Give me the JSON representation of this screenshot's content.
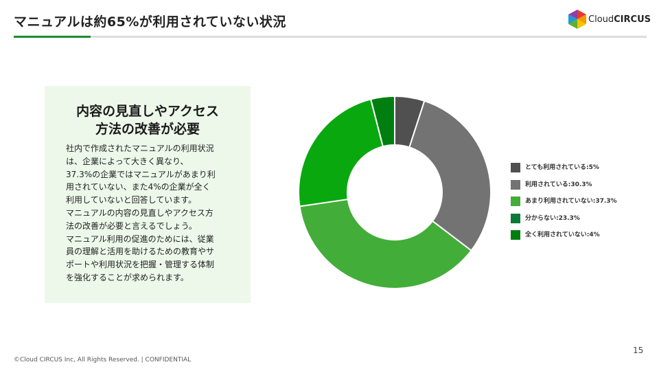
{
  "slide": {
    "title": "マニュアルは約65%が利用されていない状況",
    "page_number": "15",
    "footer": "©Cloud CIRCUS Inc, All Rights Reserved. | CONFIDENTIAL"
  },
  "logo": {
    "text_thin": "Cloud",
    "text_bold": "CIRCUS"
  },
  "info_box": {
    "heading_line1": "内容の見直しやアクセス",
    "heading_line2": "方法の改善が必要",
    "body": [
      "社内で作成されたマニュアルの利用状況",
      "は、企業によって大きく異なり、",
      "37.3%の企業ではマニュアルがあまり利",
      "用されていない、また4%の企業が全く",
      "利用していないと回答しています。",
      "マニュアルの内容の見直しやアクセス方",
      "法の改善が必要と言えるでしょう。",
      "マニュアル利用の促進のためには、従業",
      "員の理解と活用を助けるための教育やサ",
      "ポートや利用状況を把握・管理する体制",
      "を強化することが求められます。"
    ]
  },
  "chart_data": {
    "type": "pie",
    "style": "donut",
    "categories": [
      "とても利用されている",
      "利用されている",
      "あまり利用されていない",
      "分からない",
      "全く利用されていない"
    ],
    "values": [
      5,
      30.3,
      37.3,
      23.3,
      4
    ],
    "unit": "%",
    "colors": [
      "#505050",
      "#737373",
      "#43ad3a",
      "#09a80f",
      "#007f10"
    ],
    "legend_labels": [
      "とても利用されている:5%",
      "利用されている:30.3%",
      "あまり利用されていない:37.3%",
      "分からない:23.3%",
      "全く利用されていない:4%"
    ],
    "legend_swatch_colors": [
      "#505050",
      "#737373",
      "#43ad3a",
      "#0b7a37",
      "#007f10"
    ],
    "legend_position": "right",
    "start": "top",
    "direction": "clockwise"
  }
}
